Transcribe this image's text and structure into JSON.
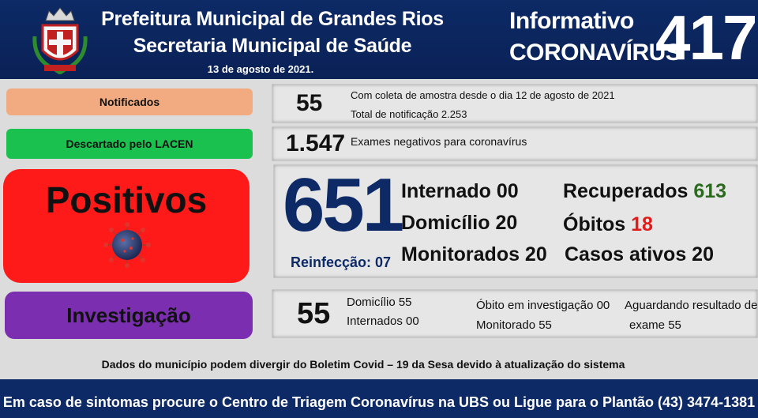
{
  "header": {
    "title_line1": "Prefeitura Municipal de Grandes Rios",
    "title_line2": "Secretaria Municipal de Saúde",
    "date": "13 de agosto de 2021.",
    "info_line1": "Informativo",
    "info_line2": "CORONAVÍRUS",
    "bulletin_number": "417"
  },
  "notificados": {
    "label": "Notificados",
    "value": "55",
    "line1": "Com coleta de amostra desde o dia 12 de agosto de 2021",
    "line2": "Total de notificação 2.253"
  },
  "descartados": {
    "label": "Descartado pelo LACEN",
    "value": "1.547",
    "text": "Exames negativos para coronavírus"
  },
  "positivos": {
    "label": "Positivos",
    "value": "651",
    "reinfeccao": "Reinfecção: 07",
    "internado": "Internado 00",
    "domicilio": "Domicílio 20",
    "monitorados": "Monitorados 20",
    "recuperados_label": "Recuperados",
    "recuperados_value": "613",
    "obitos_label": "Óbitos",
    "obitos_value": "18",
    "casos_ativos": "Casos ativos 20"
  },
  "investigacao": {
    "label": "Investigação",
    "value": "55",
    "domicilio": "Domicílio 55",
    "internados": "Internados 00",
    "obito": "Óbito em investigação 00",
    "monitorado": "Monitorado 55",
    "aguardando_line1": "Aguardando resultado de",
    "aguardando_line2": "exame 55"
  },
  "disclaimer": "Dados do município podem divergir do Boletim Covid – 19 da Sesa devido à atualização do sistema",
  "footer": "Em caso de sintomas procure o Centro de Triagem Coronavírus na UBS ou Ligue para o Plantão (43) 3474-1381",
  "colors": {
    "header_bg": "#0d2a66",
    "notificados": "#f2ab80",
    "descartados": "#1ac14f",
    "positivos": "#ff1a1a",
    "investigacao": "#7b2fb0"
  },
  "icons": [
    "crest-logo",
    "virus-icon"
  ]
}
